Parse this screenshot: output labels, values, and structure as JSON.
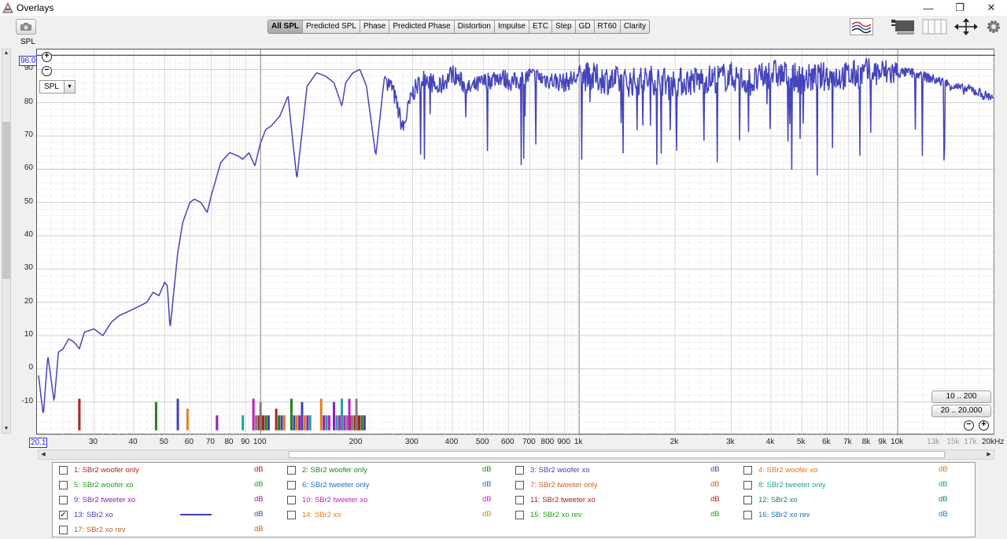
{
  "window": {
    "title": "Overlays",
    "buttons": [
      "—",
      "❐",
      "✕"
    ]
  },
  "toolbar": {
    "mode_label": "SPL",
    "tabs": [
      {
        "label": "All SPL",
        "active": true
      },
      {
        "label": "Predicted SPL",
        "active": false
      },
      {
        "label": "Phase",
        "active": false
      },
      {
        "label": "Predicted Phase",
        "active": false
      },
      {
        "label": "Distortion",
        "active": false
      },
      {
        "label": "Impulse",
        "active": false
      },
      {
        "label": "ETC",
        "active": false
      },
      {
        "label": "Step",
        "active": false
      },
      {
        "label": "GD",
        "active": false
      },
      {
        "label": "RT60",
        "active": false
      },
      {
        "label": "Clarity",
        "active": false
      }
    ]
  },
  "plot": {
    "top_value": "96.0",
    "left_value": "20.1",
    "y_dropdown": "SPL",
    "range_buttons": [
      "10 .. 200",
      "20 .. 20,000"
    ],
    "y_ticks": [
      "90",
      "80",
      "70",
      "60",
      "50",
      "40",
      "30",
      "20",
      "10",
      "0",
      "-10"
    ],
    "x_ticks": [
      "30",
      "40",
      "50",
      "60",
      "70",
      "80",
      "90",
      "100",
      "200",
      "300",
      "400",
      "500",
      "600",
      "700",
      "800",
      "900",
      "1k",
      "2k",
      "3k",
      "4k",
      "5k",
      "6k",
      "7k",
      "8k",
      "9k",
      "10k"
    ],
    "x_ticks_dim": [
      "13k",
      "15k",
      "17k"
    ],
    "x_unit": "20kHz"
  },
  "chart_data": {
    "type": "line",
    "x_scale": "log",
    "xlim": [
      20.1,
      20000
    ],
    "ylim": [
      -20,
      96
    ],
    "series": [
      {
        "name": "13: SBr2 xo",
        "color": "#4444bb",
        "x": [
          20.1,
          20.8,
          21.5,
          22.5,
          23.2,
          24,
          25,
          26,
          27,
          28,
          30,
          32,
          34,
          36,
          38,
          40,
          42,
          44,
          46,
          48,
          50,
          51,
          52,
          53,
          55,
          57,
          60,
          62,
          65,
          68,
          70,
          75,
          80,
          85,
          88,
          92,
          96,
          100,
          104,
          108,
          115,
          122,
          130,
          140,
          150,
          160,
          170,
          180,
          185,
          195,
          205,
          215,
          230,
          245,
          260,
          280,
          300,
          330,
          360,
          400,
          450,
          500,
          560,
          620,
          700,
          800,
          900,
          1000,
          1200,
          1400,
          1700,
          2000,
          2500,
          3000,
          3500,
          4000,
          4500,
          5000,
          6000,
          7000,
          8000,
          9000,
          10000,
          11000,
          12000,
          13000,
          14000,
          15000,
          16000,
          17000,
          18000,
          19000,
          20000
        ],
        "y": [
          -2,
          -14,
          4,
          -10,
          5,
          6,
          9,
          8,
          6,
          11,
          12,
          10,
          14,
          16,
          17,
          18,
          19,
          20,
          23,
          22,
          26,
          25,
          12,
          20,
          35,
          44,
          50,
          51,
          50,
          47,
          52,
          62,
          65,
          64,
          63,
          65,
          61,
          68,
          72,
          73,
          76,
          82,
          57,
          85,
          89,
          88,
          86,
          79,
          86,
          89,
          90,
          85,
          64,
          88,
          84,
          72,
          83,
          88,
          84,
          89,
          84,
          86,
          88,
          86,
          88,
          87,
          86,
          88,
          87,
          86,
          87,
          86,
          87,
          88,
          86,
          89,
          88,
          87,
          88,
          88,
          89,
          89,
          89,
          89,
          88,
          87,
          86,
          85,
          84,
          84,
          83,
          82,
          82
        ]
      }
    ],
    "impulse_markers": {
      "x": [
        27,
        47,
        55,
        59,
        73,
        88,
        95,
        100,
        112,
        125,
        135,
        155,
        170,
        180,
        190,
        200
      ],
      "y": [
        -9,
        -10,
        -9,
        -12,
        -14,
        -14,
        -9,
        -10,
        -12,
        -9,
        -10,
        -9,
        -10,
        -9,
        -9,
        -9
      ]
    }
  },
  "legend": {
    "db_label": "dB",
    "items": [
      {
        "label": "1: SBr2 woofer only",
        "color": "#b02020",
        "checked": false
      },
      {
        "label": "2: SBr2 woofer only",
        "color": "#208020",
        "checked": false
      },
      {
        "label": "3: SBr2 woofer xo",
        "color": "#4040b0",
        "checked": false
      },
      {
        "label": "4: SBr2 woofer xo",
        "color": "#e07020",
        "checked": false
      },
      {
        "label": "5: SBr2 woofer xo",
        "color": "#20a020",
        "checked": false
      },
      {
        "label": "6: SBr2 tweeter only",
        "color": "#2070c0",
        "checked": false
      },
      {
        "label": "7: SBr2 tweeter only",
        "color": "#d06020",
        "checked": false
      },
      {
        "label": "8: SBr2 tweeter only",
        "color": "#20a0a0",
        "checked": false
      },
      {
        "label": "9: SBr2 tweeter xo",
        "color": "#9020b0",
        "checked": false
      },
      {
        "label": "10: SBr2 tweeter xo",
        "color": "#c020c0",
        "checked": false
      },
      {
        "label": "11: SBr2 tweeter xo",
        "color": "#b02020",
        "checked": false
      },
      {
        "label": "12: SBr2 xo",
        "color": "#208060",
        "checked": false
      },
      {
        "label": "13: SBr2 xo",
        "color": "#4040b0",
        "checked": true
      },
      {
        "label": "14: SBr2 xo",
        "color": "#e08020",
        "checked": false
      },
      {
        "label": "15: SBr2 xo rev",
        "color": "#20a020",
        "checked": false
      },
      {
        "label": "16: SBr2 xo rev",
        "color": "#2070c0",
        "checked": false
      },
      {
        "label": "17: SBr2 xo rev",
        "color": "#c06020",
        "checked": false
      }
    ]
  }
}
